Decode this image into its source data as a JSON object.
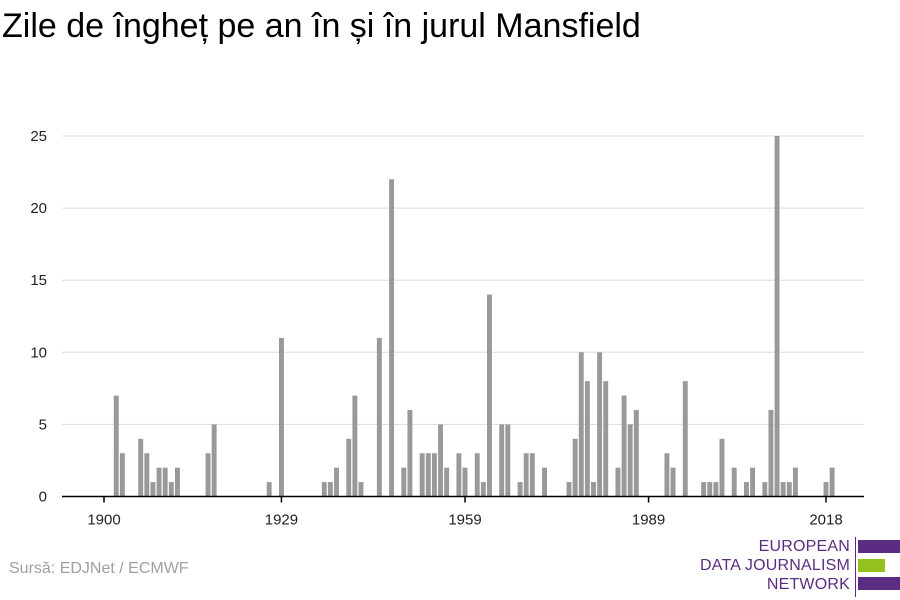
{
  "title": "Zile de îngheț pe an în și în jurul Mansfield",
  "source": "Sursă: EDJNet / ECMWF",
  "logo": {
    "line1": "EUROPEAN",
    "line2": "DATA JOURNALISM",
    "line3": "NETWORK",
    "colors": [
      "#5b2d82",
      "#95c11f",
      "#5b2d82"
    ]
  },
  "colors": {
    "bar": "#999999",
    "grid": "#dddddd",
    "axis": "#000000"
  },
  "chart_data": {
    "type": "bar",
    "title": "Zile de îngheț pe an în și în jurul Mansfield",
    "xlabel": "",
    "ylabel": "",
    "ylim": [
      0,
      25
    ],
    "xlim": [
      1900,
      2021
    ],
    "grid": true,
    "x_ticks": [
      1900,
      1929,
      1959,
      1989,
      2018
    ],
    "y_ticks": [
      0,
      5,
      10,
      15,
      20,
      25
    ],
    "years": [
      1900,
      1901,
      1902,
      1903,
      1904,
      1905,
      1906,
      1907,
      1908,
      1909,
      1910,
      1911,
      1912,
      1913,
      1914,
      1915,
      1916,
      1917,
      1918,
      1919,
      1920,
      1921,
      1922,
      1923,
      1924,
      1925,
      1926,
      1927,
      1928,
      1929,
      1930,
      1931,
      1932,
      1933,
      1934,
      1935,
      1936,
      1937,
      1938,
      1939,
      1940,
      1941,
      1942,
      1943,
      1944,
      1945,
      1946,
      1947,
      1948,
      1949,
      1950,
      1951,
      1952,
      1953,
      1954,
      1955,
      1956,
      1957,
      1958,
      1959,
      1960,
      1961,
      1962,
      1963,
      1964,
      1965,
      1966,
      1967,
      1968,
      1969,
      1970,
      1971,
      1972,
      1973,
      1974,
      1975,
      1976,
      1977,
      1978,
      1979,
      1980,
      1981,
      1982,
      1983,
      1984,
      1985,
      1986,
      1987,
      1988,
      1989,
      1990,
      1991,
      1992,
      1993,
      1994,
      1995,
      1996,
      1997,
      1998,
      1999,
      2000,
      2001,
      2002,
      2003,
      2004,
      2005,
      2006,
      2007,
      2008,
      2009,
      2010,
      2011,
      2012,
      2013,
      2014,
      2015,
      2016,
      2017,
      2018,
      2019,
      2020
    ],
    "values": [
      0,
      0,
      7,
      3,
      0,
      0,
      4,
      3,
      1,
      2,
      2,
      1,
      2,
      0,
      0,
      0,
      0,
      3,
      5,
      0,
      0,
      0,
      0,
      0,
      0,
      0,
      0,
      1,
      0,
      11,
      0,
      0,
      0,
      0,
      0,
      0,
      1,
      1,
      2,
      0,
      4,
      7,
      1,
      0,
      0,
      11,
      0,
      22,
      0,
      2,
      6,
      0,
      3,
      3,
      3,
      5,
      2,
      0,
      3,
      2,
      0,
      3,
      1,
      14,
      0,
      5,
      5,
      0,
      1,
      3,
      3,
      0,
      2,
      0,
      0,
      0,
      1,
      4,
      10,
      8,
      1,
      10,
      8,
      0,
      2,
      7,
      5,
      6,
      0,
      0,
      0,
      0,
      3,
      2,
      0,
      8,
      0,
      0,
      1,
      1,
      1,
      4,
      0,
      2,
      0,
      1,
      2,
      0,
      1,
      6,
      25,
      1,
      1,
      2,
      0,
      0,
      0,
      0,
      1,
      2,
      0
    ]
  }
}
